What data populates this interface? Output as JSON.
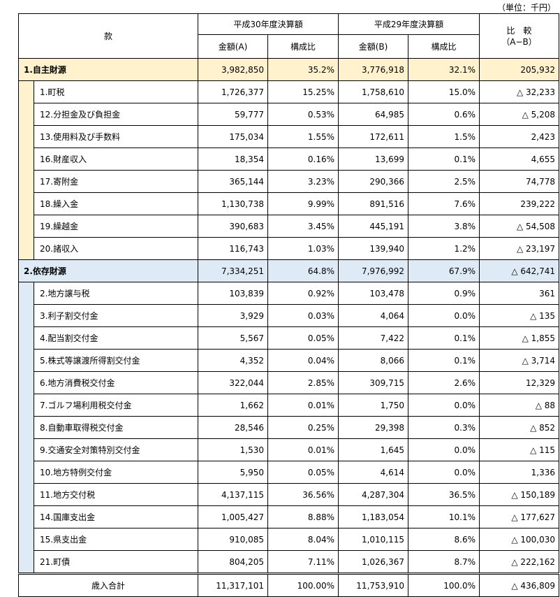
{
  "unit_label": "（単位：千円）",
  "header": {
    "kan": "款",
    "h30": "平成30年度決算額",
    "h29": "平成29年度決算額",
    "compare_line1": "比　較",
    "compare_line2": "（A−B）",
    "amount_a": "金額(A)",
    "ratio_a": "構成比",
    "amount_b": "金額(B)",
    "ratio_b": "構成比"
  },
  "sections": [
    {
      "title": "1.自主財源",
      "a": "3,982,850",
      "ra": "35.2%",
      "b": "3,776,918",
      "rb": "32.1%",
      "diff": "205,932",
      "rows": [
        {
          "label": "1.町税",
          "a": "1,726,377",
          "ra": "15.25%",
          "b": "1,758,610",
          "rb": "15.0%",
          "diff": "△ 32,233"
        },
        {
          "label": "12.分担金及び負担金",
          "a": "59,777",
          "ra": "0.53%",
          "b": "64,985",
          "rb": "0.6%",
          "diff": "△ 5,208"
        },
        {
          "label": "13.使用料及び手数料",
          "a": "175,034",
          "ra": "1.55%",
          "b": "172,611",
          "rb": "1.5%",
          "diff": "2,423"
        },
        {
          "label": "16.財産収入",
          "a": "18,354",
          "ra": "0.16%",
          "b": "13,699",
          "rb": "0.1%",
          "diff": "4,655"
        },
        {
          "label": "17.寄附金",
          "a": "365,144",
          "ra": "3.23%",
          "b": "290,366",
          "rb": "2.5%",
          "diff": "74,778"
        },
        {
          "label": "18.繰入金",
          "a": "1,130,738",
          "ra": "9.99%",
          "b": "891,516",
          "rb": "7.6%",
          "diff": "239,222"
        },
        {
          "label": "19.繰越金",
          "a": "390,683",
          "ra": "3.45%",
          "b": "445,191",
          "rb": "3.8%",
          "diff": "△ 54,508"
        },
        {
          "label": "20.諸収入",
          "a": "116,743",
          "ra": "1.03%",
          "b": "139,940",
          "rb": "1.2%",
          "diff": "△ 23,197"
        }
      ]
    },
    {
      "title": "2.依存財源",
      "a": "7,334,251",
      "ra": "64.8%",
      "b": "7,976,992",
      "rb": "67.9%",
      "diff": "△ 642,741",
      "rows": [
        {
          "label": "2.地方譲与税",
          "a": "103,839",
          "ra": "0.92%",
          "b": "103,478",
          "rb": "0.9%",
          "diff": "361"
        },
        {
          "label": "3.利子割交付金",
          "a": "3,929",
          "ra": "0.03%",
          "b": "4,064",
          "rb": "0.0%",
          "diff": "△ 135"
        },
        {
          "label": "4.配当割交付金",
          "a": "5,567",
          "ra": "0.05%",
          "b": "7,422",
          "rb": "0.1%",
          "diff": "△ 1,855"
        },
        {
          "label": "5.株式等譲渡所得割交付金",
          "a": "4,352",
          "ra": "0.04%",
          "b": "8,066",
          "rb": "0.1%",
          "diff": "△ 3,714"
        },
        {
          "label": "6.地方消費税交付金",
          "a": "322,044",
          "ra": "2.85%",
          "b": "309,715",
          "rb": "2.6%",
          "diff": "12,329"
        },
        {
          "label": "7.ゴルフ場利用税交付金",
          "a": "1,662",
          "ra": "0.01%",
          "b": "1,750",
          "rb": "0.0%",
          "diff": "△ 88"
        },
        {
          "label": "8.自動車取得税交付金",
          "a": "28,546",
          "ra": "0.25%",
          "b": "29,398",
          "rb": "0.3%",
          "diff": "△ 852"
        },
        {
          "label": "9.交通安全対策特別交付金",
          "a": "1,530",
          "ra": "0.01%",
          "b": "1,645",
          "rb": "0.0%",
          "diff": "△ 115"
        },
        {
          "label": "10.地方特例交付金",
          "a": "5,950",
          "ra": "0.05%",
          "b": "4,614",
          "rb": "0.0%",
          "diff": "1,336"
        },
        {
          "label": "11.地方交付税",
          "a": "4,137,115",
          "ra": "36.56%",
          "b": "4,287,304",
          "rb": "36.5%",
          "diff": "△ 150,189"
        },
        {
          "label": "14.国庫支出金",
          "a": "1,005,427",
          "ra": "8.88%",
          "b": "1,183,054",
          "rb": "10.1%",
          "diff": "△ 177,627"
        },
        {
          "label": "15.県支出金",
          "a": "910,085",
          "ra": "8.04%",
          "b": "1,010,115",
          "rb": "8.6%",
          "diff": "△ 100,030"
        },
        {
          "label": "21.町債",
          "a": "804,205",
          "ra": "7.11%",
          "b": "1,026,367",
          "rb": "8.7%",
          "diff": "△ 222,162"
        }
      ]
    }
  ],
  "total": {
    "label": "歳入合計",
    "a": "11,317,101",
    "ra": "100.00%",
    "b": "11,753,910",
    "rb": "100.0%",
    "diff": "△ 436,809"
  },
  "colors": {
    "self_section": "#fff2cc",
    "dependent_section": "#deebf7",
    "indicator": "#1e7a1e"
  }
}
